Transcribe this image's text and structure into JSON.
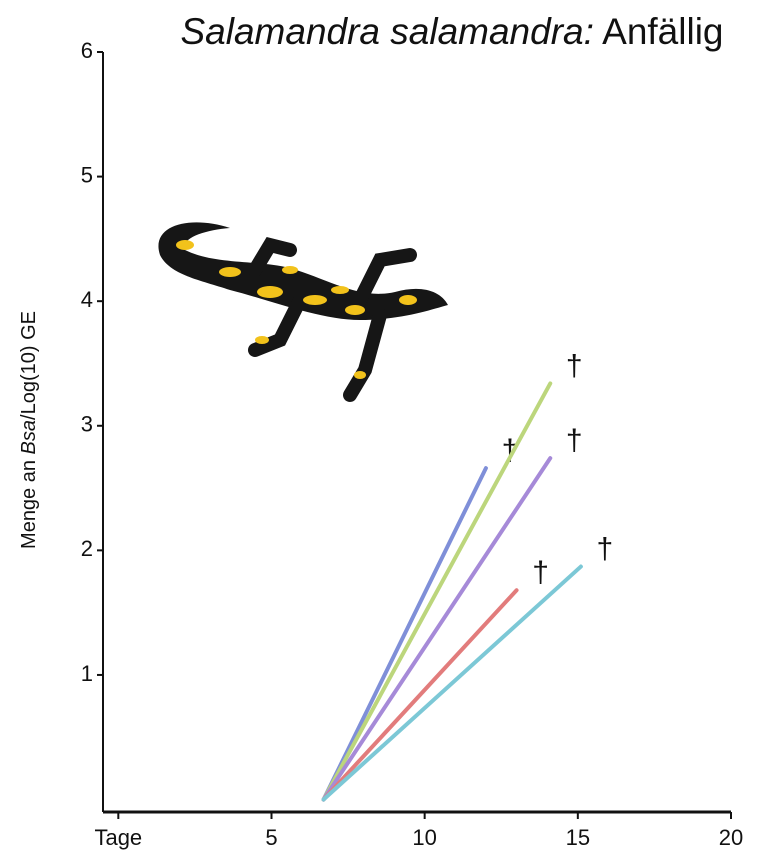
{
  "chart_data": {
    "type": "line",
    "title_italic": "Salamandra salamandra:",
    "title": "Anfällig",
    "y_label_parts": [
      "Menge an ",
      "Bsa",
      "/Log(10) GE"
    ],
    "xlim": [
      -0.5,
      20
    ],
    "ylim": [
      -0.1,
      6
    ],
    "xticks": [
      {
        "value": 0,
        "label": "Tage"
      },
      5,
      10,
      15,
      20
    ],
    "yticks": [
      1,
      2,
      3,
      4,
      5,
      6
    ],
    "series": [
      {
        "color": "#7f8fd8",
        "x": [
          6.7,
          12.0
        ],
        "values": [
          0,
          2.66
        ],
        "end_label": "†"
      },
      {
        "color": "#bcd67c",
        "x": [
          6.7,
          14.1
        ],
        "values": [
          0,
          3.34
        ],
        "end_label": "†"
      },
      {
        "color": "#a68ad8",
        "x": [
          6.7,
          14.1
        ],
        "values": [
          0,
          2.74
        ],
        "end_label": "†"
      },
      {
        "color": "#e27c7c",
        "x": [
          6.7,
          13.0
        ],
        "values": [
          0,
          1.68
        ],
        "end_label": "†"
      },
      {
        "color": "#7cc8d6",
        "x": [
          6.7,
          15.1
        ],
        "values": [
          0,
          1.87
        ],
        "end_label": "†"
      }
    ]
  }
}
